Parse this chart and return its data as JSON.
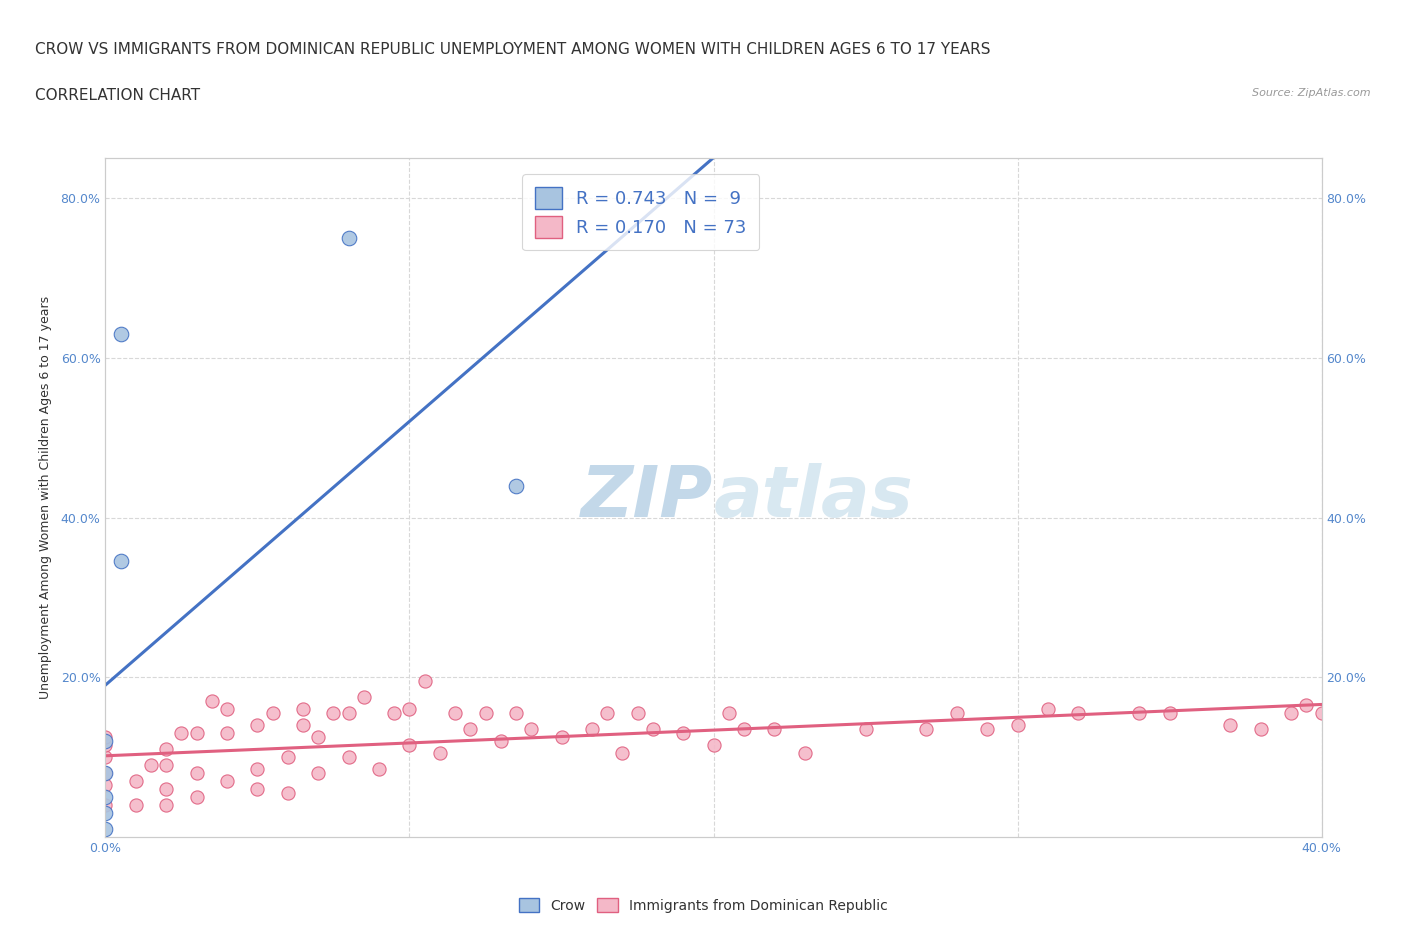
{
  "title_line1": "CROW VS IMMIGRANTS FROM DOMINICAN REPUBLIC UNEMPLOYMENT AMONG WOMEN WITH CHILDREN AGES 6 TO 17 YEARS",
  "title_line2": "CORRELATION CHART",
  "source": "Source: ZipAtlas.com",
  "ylabel": "Unemployment Among Women with Children Ages 6 to 17 years",
  "xlim": [
    0.0,
    0.4
  ],
  "ylim": [
    0.0,
    0.85
  ],
  "crow_color": "#a8c4e0",
  "crow_line_color": "#4472c4",
  "dr_color": "#f4b8c8",
  "dr_line_color": "#e06080",
  "crow_R": 0.743,
  "crow_N": 9,
  "dr_R": 0.17,
  "dr_N": 73,
  "crow_scatter_x": [
    0.0,
    0.0,
    0.0,
    0.0,
    0.0,
    0.005,
    0.005,
    0.08,
    0.135
  ],
  "crow_scatter_y": [
    0.01,
    0.03,
    0.05,
    0.08,
    0.12,
    0.345,
    0.63,
    0.75,
    0.44
  ],
  "dr_scatter_x": [
    0.0,
    0.0,
    0.0,
    0.0,
    0.0,
    0.0,
    0.01,
    0.01,
    0.015,
    0.02,
    0.02,
    0.02,
    0.02,
    0.025,
    0.03,
    0.03,
    0.03,
    0.035,
    0.04,
    0.04,
    0.04,
    0.05,
    0.05,
    0.05,
    0.055,
    0.06,
    0.06,
    0.065,
    0.065,
    0.07,
    0.07,
    0.075,
    0.08,
    0.08,
    0.085,
    0.09,
    0.095,
    0.1,
    0.1,
    0.105,
    0.11,
    0.115,
    0.12,
    0.125,
    0.13,
    0.135,
    0.14,
    0.15,
    0.16,
    0.165,
    0.17,
    0.175,
    0.18,
    0.19,
    0.2,
    0.205,
    0.21,
    0.22,
    0.23,
    0.25,
    0.27,
    0.28,
    0.29,
    0.3,
    0.31,
    0.32,
    0.34,
    0.35,
    0.37,
    0.38,
    0.39,
    0.395,
    0.4
  ],
  "dr_scatter_y": [
    0.04,
    0.065,
    0.08,
    0.1,
    0.115,
    0.125,
    0.04,
    0.07,
    0.09,
    0.04,
    0.06,
    0.09,
    0.11,
    0.13,
    0.05,
    0.08,
    0.13,
    0.17,
    0.07,
    0.13,
    0.16,
    0.06,
    0.085,
    0.14,
    0.155,
    0.055,
    0.1,
    0.14,
    0.16,
    0.08,
    0.125,
    0.155,
    0.1,
    0.155,
    0.175,
    0.085,
    0.155,
    0.115,
    0.16,
    0.195,
    0.105,
    0.155,
    0.135,
    0.155,
    0.12,
    0.155,
    0.135,
    0.125,
    0.135,
    0.155,
    0.105,
    0.155,
    0.135,
    0.13,
    0.115,
    0.155,
    0.135,
    0.135,
    0.105,
    0.135,
    0.135,
    0.155,
    0.135,
    0.14,
    0.16,
    0.155,
    0.155,
    0.155,
    0.14,
    0.135,
    0.155,
    0.165,
    0.155
  ],
  "watermark_color": "#ccdcec",
  "background_color": "#ffffff",
  "grid_color": "#d8d8d8",
  "title_fontsize": 11,
  "legend_fontsize": 13
}
